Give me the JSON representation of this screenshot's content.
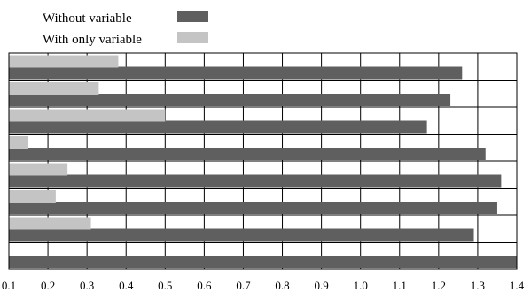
{
  "chart_data": {
    "type": "bar",
    "orientation": "horizontal",
    "title": "",
    "xlabel": "",
    "ylabel": "",
    "xlim": [
      0.1,
      1.4
    ],
    "x_ticks": [
      0.1,
      0.2,
      0.3,
      0.4,
      0.5,
      0.6,
      0.7,
      0.8,
      0.9,
      1.0,
      1.1,
      1.2,
      1.3,
      1.4
    ],
    "x_tick_labels": [
      "0.1",
      "0.2",
      "0.3",
      "0.4",
      "0.5",
      "0.6",
      "0.7",
      "0.8",
      "0.9",
      "1.0",
      "1.1",
      "1.2",
      "1.3",
      "1.4"
    ],
    "grid": "vertical",
    "legend_position": "top-left",
    "categories": [
      "",
      "",
      "",
      "",
      "",
      "",
      "",
      ""
    ],
    "series": [
      {
        "name": "Without variable",
        "color": "#5f5f5f",
        "values": [
          1.26,
          1.23,
          1.17,
          1.32,
          1.36,
          1.35,
          1.29,
          1.4
        ]
      },
      {
        "name": "With only variable",
        "color": "#c4c4c4",
        "values": [
          0.38,
          0.33,
          0.5,
          0.15,
          0.25,
          0.22,
          0.31,
          null
        ]
      }
    ]
  }
}
